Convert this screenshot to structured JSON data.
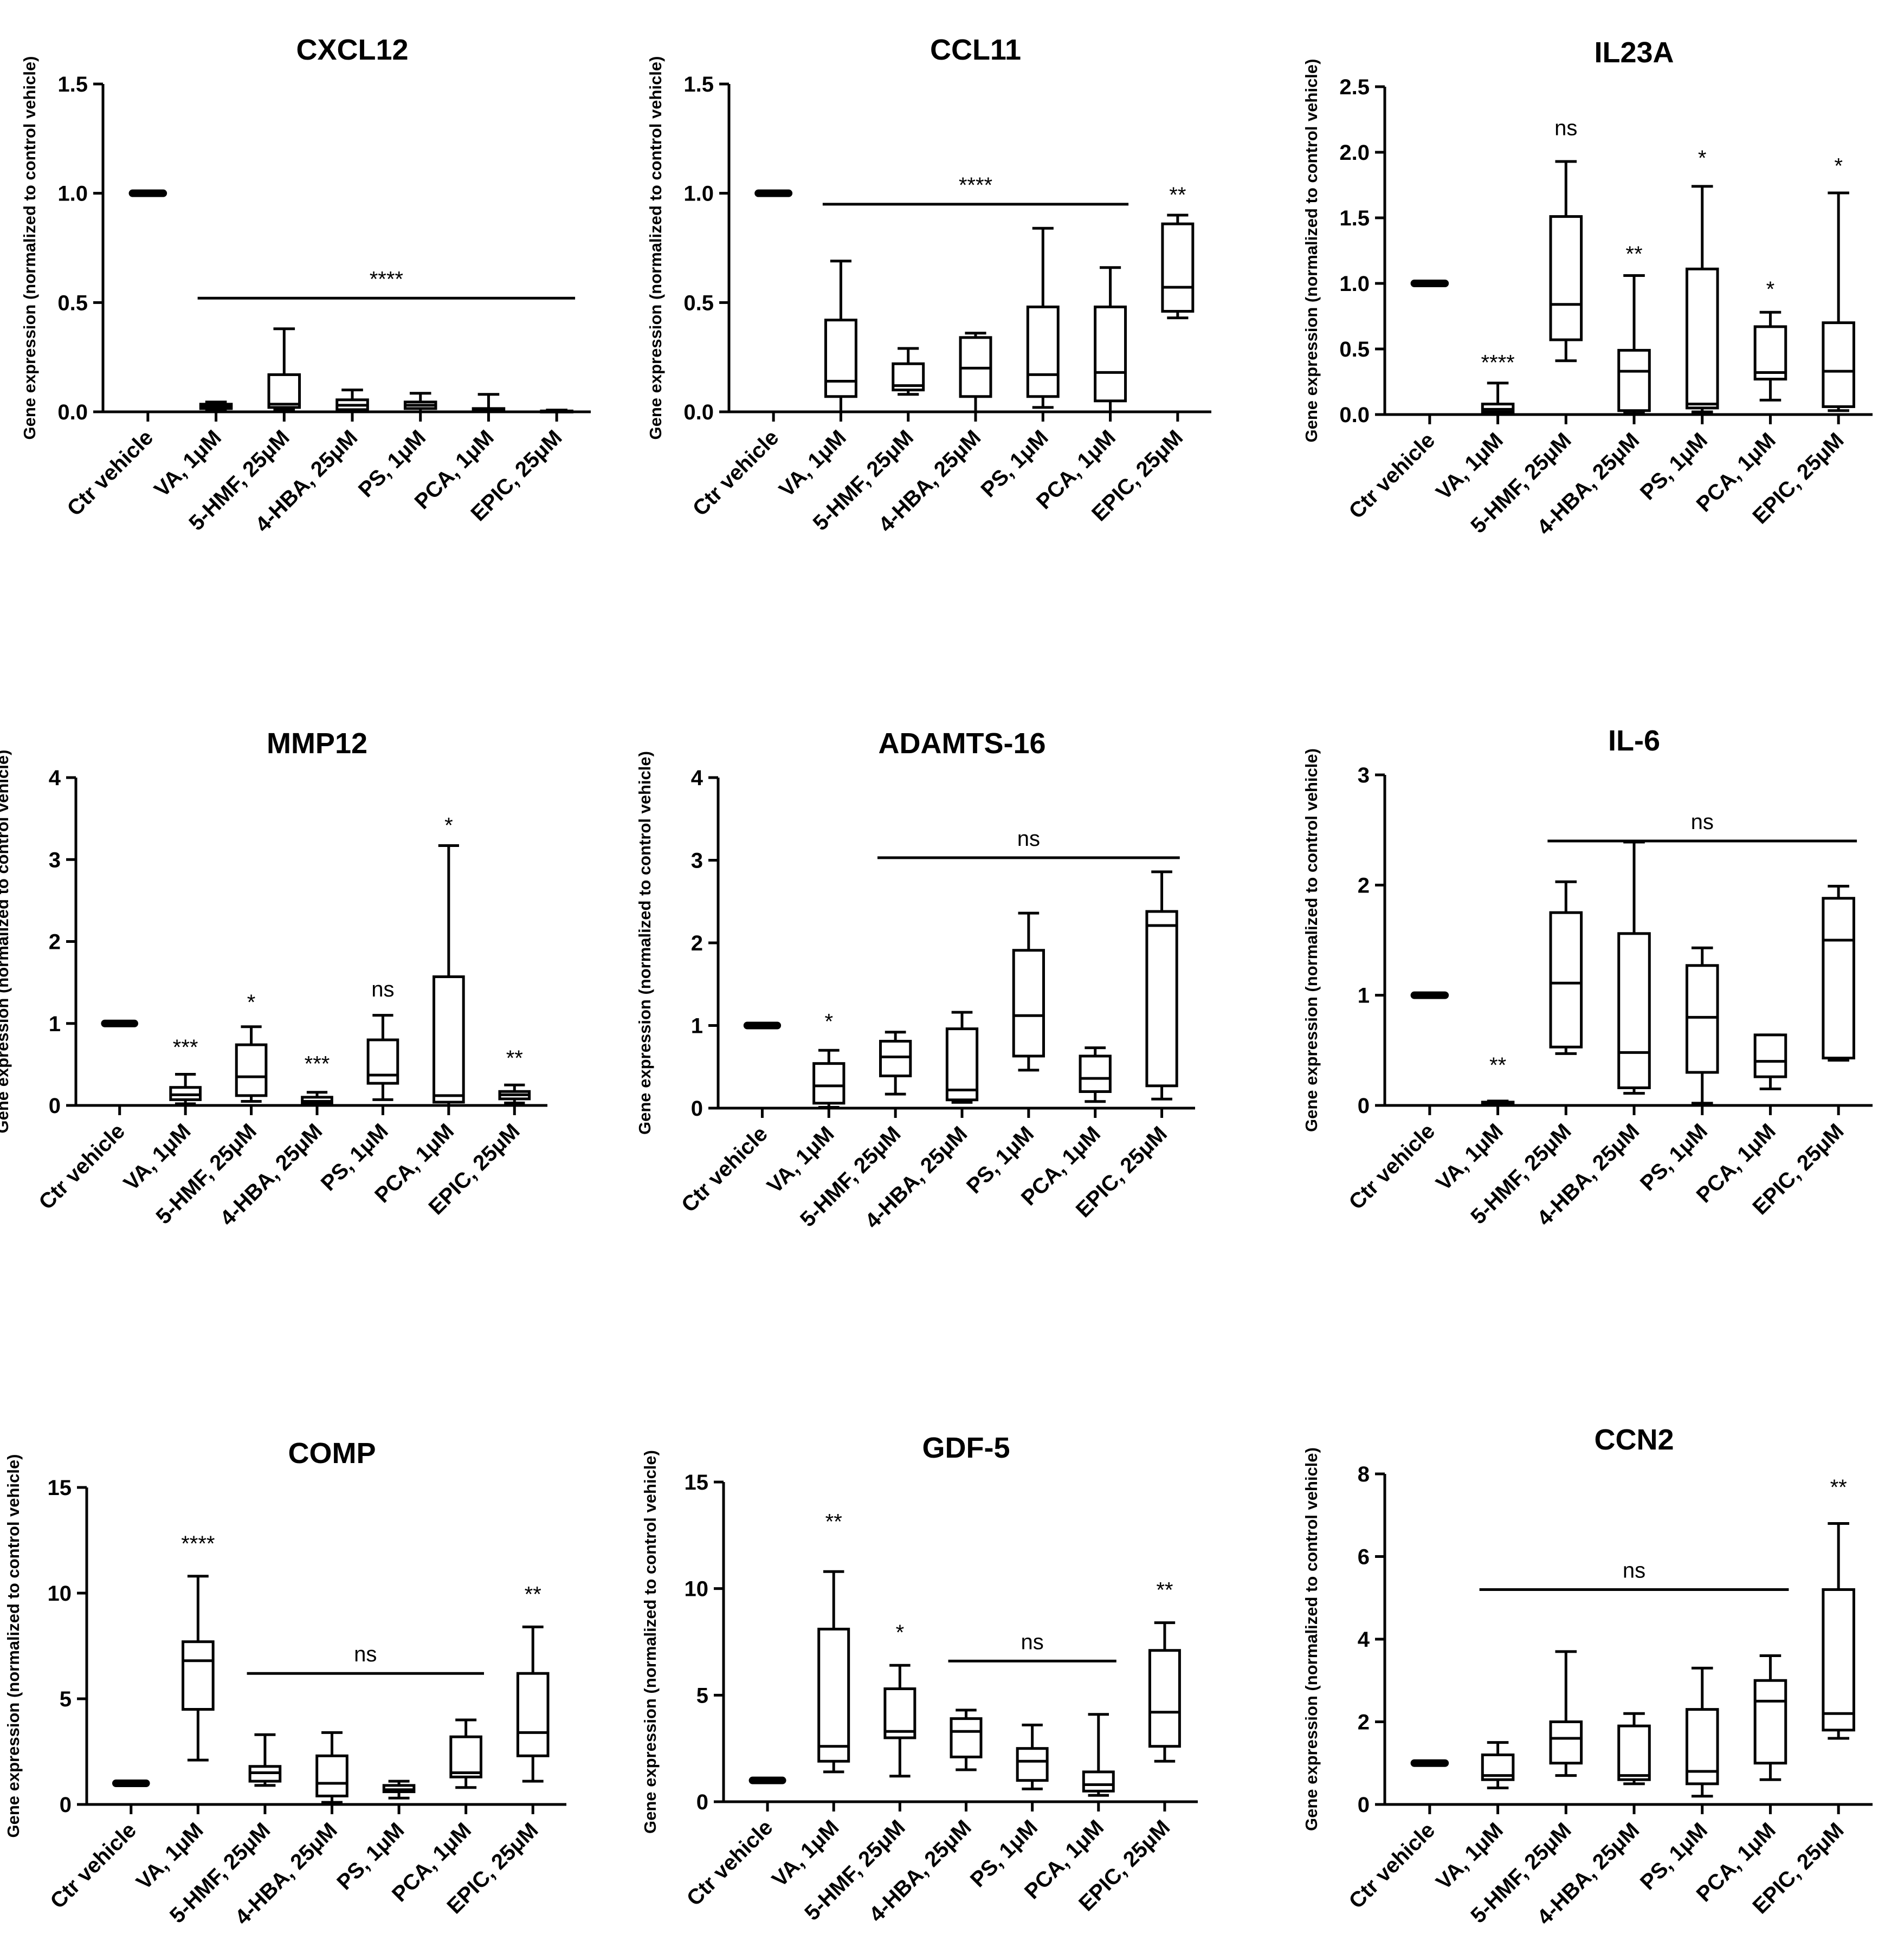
{
  "figure": {
    "panel_count": 9
  },
  "chart_data": [
    {
      "type": "box",
      "title": "CXCL12",
      "ylabel": "Gene expression (normalized to control vehicle)",
      "ylim": [
        0,
        1.5
      ],
      "yticks": [
        0,
        0.5,
        1.0,
        1.5
      ],
      "ytick_labels": [
        "0.0",
        "0.5",
        "1.0",
        "1.5"
      ],
      "categories": [
        "Ctr vehicle",
        "VA, 1μM",
        "5-HMF, 25μM",
        "4-HBA, 25μM",
        "PS, 1μM",
        "PCA, 1μM",
        "EPIC, 25μM"
      ],
      "boxes": [
        {
          "min": 1.0,
          "q1": 1.0,
          "median": 1.0,
          "q3": 1.0,
          "max": 1.0
        },
        {
          "min": 0.01,
          "q1": 0.015,
          "median": 0.025,
          "q3": 0.035,
          "max": 0.045
        },
        {
          "min": 0.01,
          "q1": 0.02,
          "median": 0.035,
          "q3": 0.17,
          "max": 0.38
        },
        {
          "min": 0.0,
          "q1": 0.01,
          "median": 0.03,
          "q3": 0.055,
          "max": 0.1
        },
        {
          "min": 0.0,
          "q1": 0.015,
          "median": 0.03,
          "q3": 0.045,
          "max": 0.085
        },
        {
          "min": 0.0,
          "q1": 0.002,
          "median": 0.006,
          "q3": 0.015,
          "max": 0.08
        },
        {
          "min": 0.0,
          "q1": 0.001,
          "median": 0.002,
          "q3": 0.004,
          "max": 0.008
        }
      ],
      "brackets": [
        {
          "from": 1,
          "to": 6,
          "y": 0.52,
          "label": "****"
        }
      ],
      "annotations": []
    },
    {
      "type": "box",
      "title": "CCL11",
      "ylabel": "Gene expression (normalized to control vehicle)",
      "ylim": [
        0,
        1.5
      ],
      "yticks": [
        0,
        0.5,
        1.0,
        1.5
      ],
      "ytick_labels": [
        "0.0",
        "0.5",
        "1.0",
        "1.5"
      ],
      "categories": [
        "Ctr vehicle",
        "VA, 1μM",
        "5-HMF, 25μM",
        "4-HBA, 25μM",
        "PS, 1μM",
        "PCA, 1μM",
        "EPIC, 25μM"
      ],
      "boxes": [
        {
          "min": 1.0,
          "q1": 1.0,
          "median": 1.0,
          "q3": 1.0,
          "max": 1.0
        },
        {
          "min": 0.0,
          "q1": 0.07,
          "median": 0.14,
          "q3": 0.42,
          "max": 0.69
        },
        {
          "min": 0.08,
          "q1": 0.1,
          "median": 0.12,
          "q3": 0.22,
          "max": 0.29
        },
        {
          "min": 0.0,
          "q1": 0.07,
          "median": 0.2,
          "q3": 0.34,
          "max": 0.36
        },
        {
          "min": 0.02,
          "q1": 0.07,
          "median": 0.17,
          "q3": 0.48,
          "max": 0.84
        },
        {
          "min": 0.0,
          "q1": 0.05,
          "median": 0.18,
          "q3": 0.48,
          "max": 0.66
        },
        {
          "min": 0.43,
          "q1": 0.46,
          "median": 0.57,
          "q3": 0.86,
          "max": 0.9
        }
      ],
      "brackets": [
        {
          "from": 1,
          "to": 5,
          "y": 0.95,
          "label": "****"
        }
      ],
      "annotations": [
        {
          "index": 6,
          "y": 0.96,
          "label": "**"
        }
      ]
    },
    {
      "type": "box",
      "title": "IL23A",
      "ylabel": "Gene expression (normalized to control vehicle)",
      "ylim": [
        0,
        2.5
      ],
      "yticks": [
        0,
        0.5,
        1.0,
        1.5,
        2.0,
        2.5
      ],
      "ytick_labels": [
        "0.0",
        "0.5",
        "1.0",
        "1.5",
        "2.0",
        "2.5"
      ],
      "categories": [
        "Ctr vehicle",
        "VA, 1μM",
        "5-HMF, 25μM",
        "4-HBA, 25μM",
        "PS, 1μM",
        "PCA, 1μM",
        "EPIC, 25μM"
      ],
      "boxes": [
        {
          "min": 1.0,
          "q1": 1.0,
          "median": 1.0,
          "q3": 1.0,
          "max": 1.0
        },
        {
          "min": 0.0,
          "q1": 0.02,
          "median": 0.04,
          "q3": 0.08,
          "max": 0.24
        },
        {
          "min": 0.41,
          "q1": 0.57,
          "median": 0.84,
          "q3": 1.51,
          "max": 1.93
        },
        {
          "min": 0.01,
          "q1": 0.03,
          "median": 0.33,
          "q3": 0.49,
          "max": 1.06
        },
        {
          "min": 0.02,
          "q1": 0.05,
          "median": 0.08,
          "q3": 1.11,
          "max": 1.74
        },
        {
          "min": 0.11,
          "q1": 0.27,
          "median": 0.32,
          "q3": 0.67,
          "max": 0.78
        },
        {
          "min": 0.03,
          "q1": 0.06,
          "median": 0.33,
          "q3": 0.7,
          "max": 1.69
        }
      ],
      "brackets": [],
      "annotations": [
        {
          "index": 1,
          "y": 0.34,
          "label": "****"
        },
        {
          "index": 2,
          "y": 2.13,
          "label": "ns"
        },
        {
          "index": 3,
          "y": 1.17,
          "label": "**"
        },
        {
          "index": 4,
          "y": 1.9,
          "label": "*"
        },
        {
          "index": 5,
          "y": 0.9,
          "label": "*"
        },
        {
          "index": 6,
          "y": 1.84,
          "label": "*"
        }
      ]
    },
    {
      "type": "box",
      "title": "MMP12",
      "ylabel": "Gene expression (normalized to control vehicle)",
      "ylim": [
        0,
        4
      ],
      "yticks": [
        0,
        1,
        2,
        3,
        4
      ],
      "ytick_labels": [
        "0",
        "1",
        "2",
        "3",
        "4"
      ],
      "categories": [
        "Ctr vehicle",
        "VA, 1μM",
        "5-HMF, 25μM",
        "4-HBA, 25μM",
        "PS, 1μM",
        "PCA, 1μM",
        "EPIC, 25μM"
      ],
      "boxes": [
        {
          "min": 1.0,
          "q1": 1.0,
          "median": 1.0,
          "q3": 1.0,
          "max": 1.0
        },
        {
          "min": 0.02,
          "q1": 0.07,
          "median": 0.13,
          "q3": 0.22,
          "max": 0.38
        },
        {
          "min": 0.05,
          "q1": 0.12,
          "median": 0.35,
          "q3": 0.74,
          "max": 0.96
        },
        {
          "min": 0.0,
          "q1": 0.02,
          "median": 0.05,
          "q3": 0.1,
          "max": 0.16
        },
        {
          "min": 0.07,
          "q1": 0.27,
          "median": 0.37,
          "q3": 0.8,
          "max": 1.1
        },
        {
          "min": 0.0,
          "q1": 0.04,
          "median": 0.12,
          "q3": 1.57,
          "max": 3.17
        },
        {
          "min": 0.03,
          "q1": 0.08,
          "median": 0.13,
          "q3": 0.17,
          "max": 0.25
        }
      ],
      "brackets": [],
      "annotations": [
        {
          "index": 1,
          "y": 0.62,
          "label": "***"
        },
        {
          "index": 2,
          "y": 1.17,
          "label": "*"
        },
        {
          "index": 3,
          "y": 0.42,
          "label": "***"
        },
        {
          "index": 4,
          "y": 1.33,
          "label": "ns"
        },
        {
          "index": 5,
          "y": 3.33,
          "label": "*"
        },
        {
          "index": 6,
          "y": 0.49,
          "label": "**"
        }
      ]
    },
    {
      "type": "box",
      "title": "ADAMTS-16",
      "ylabel": "Gene expression (normalized to control vehicle)",
      "ylim": [
        0,
        4
      ],
      "yticks": [
        0,
        1,
        2,
        3,
        4
      ],
      "ytick_labels": [
        "0",
        "1",
        "2",
        "3",
        "4"
      ],
      "categories": [
        "Ctr vehicle",
        "VA, 1μM",
        "5-HMF, 25μM",
        "4-HBA, 25μM",
        "PS, 1μM",
        "PCA, 1μM",
        "EPIC, 25μM"
      ],
      "boxes": [
        {
          "min": 1.0,
          "q1": 1.0,
          "median": 1.0,
          "q3": 1.0,
          "max": 1.0
        },
        {
          "min": 0.01,
          "q1": 0.06,
          "median": 0.27,
          "q3": 0.54,
          "max": 0.7
        },
        {
          "min": 0.17,
          "q1": 0.39,
          "median": 0.62,
          "q3": 0.81,
          "max": 0.92
        },
        {
          "min": 0.07,
          "q1": 0.1,
          "median": 0.22,
          "q3": 0.96,
          "max": 1.16
        },
        {
          "min": 0.46,
          "q1": 0.63,
          "median": 1.12,
          "q3": 1.91,
          "max": 2.36
        },
        {
          "min": 0.08,
          "q1": 0.2,
          "median": 0.36,
          "q3": 0.63,
          "max": 0.73
        },
        {
          "min": 0.11,
          "q1": 0.27,
          "median": 2.21,
          "q3": 2.38,
          "max": 2.86
        }
      ],
      "brackets": [
        {
          "from": 2,
          "to": 6,
          "y": 3.03,
          "label": "ns"
        }
      ],
      "annotations": [
        {
          "index": 1,
          "y": 0.96,
          "label": "*"
        }
      ]
    },
    {
      "type": "box",
      "title": "IL-6",
      "ylabel": "Gene expression (normalized to control vehicle)",
      "ylim": [
        0,
        3
      ],
      "yticks": [
        0,
        1,
        2,
        3
      ],
      "ytick_labels": [
        "0",
        "1",
        "2",
        "3"
      ],
      "categories": [
        "Ctr vehicle",
        "VA, 1μM",
        "5-HMF, 25μM",
        "4-HBA, 25μM",
        "PS, 1μM",
        "PCA, 1μM",
        "EPIC, 25μM"
      ],
      "boxes": [
        {
          "min": 1.0,
          "q1": 1.0,
          "median": 1.0,
          "q3": 1.0,
          "max": 1.0
        },
        {
          "min": 0.0,
          "q1": 0.01,
          "median": 0.02,
          "q3": 0.03,
          "max": 0.04
        },
        {
          "min": 0.47,
          "q1": 0.53,
          "median": 1.11,
          "q3": 1.75,
          "max": 2.03
        },
        {
          "min": 0.11,
          "q1": 0.16,
          "median": 0.48,
          "q3": 1.56,
          "max": 2.39
        },
        {
          "min": 0.02,
          "q1": 0.3,
          "median": 0.8,
          "q3": 1.27,
          "max": 1.43
        },
        {
          "min": 0.15,
          "q1": 0.26,
          "median": 0.4,
          "q3": 0.64,
          "max": 0.64
        },
        {
          "min": 0.41,
          "q1": 0.43,
          "median": 1.5,
          "q3": 1.88,
          "max": 1.99
        }
      ],
      "brackets": [
        {
          "from": 2,
          "to": 6,
          "y": 2.4,
          "label": "ns"
        }
      ],
      "annotations": [
        {
          "index": 1,
          "y": 0.3,
          "label": "**"
        }
      ]
    },
    {
      "type": "box",
      "title": "COMP",
      "ylabel": "Gene expression (normalized to control vehicle)",
      "ylim": [
        0,
        15
      ],
      "yticks": [
        0,
        5,
        10,
        15
      ],
      "ytick_labels": [
        "0",
        "5",
        "10",
        "15"
      ],
      "categories": [
        "Ctr vehicle",
        "VA, 1μM",
        "5-HMF, 25μM",
        "4-HBA, 25μM",
        "PS, 1μM",
        "PCA, 1μM",
        "EPIC, 25μM"
      ],
      "boxes": [
        {
          "min": 1.0,
          "q1": 1.0,
          "median": 1.0,
          "q3": 1.0,
          "max": 1.0
        },
        {
          "min": 2.1,
          "q1": 4.5,
          "median": 6.8,
          "q3": 7.7,
          "max": 10.8
        },
        {
          "min": 0.9,
          "q1": 1.1,
          "median": 1.5,
          "q3": 1.8,
          "max": 3.3
        },
        {
          "min": 0.1,
          "q1": 0.4,
          "median": 1.0,
          "q3": 2.3,
          "max": 3.4
        },
        {
          "min": 0.3,
          "q1": 0.6,
          "median": 0.7,
          "q3": 0.9,
          "max": 1.1
        },
        {
          "min": 0.8,
          "q1": 1.3,
          "median": 1.5,
          "q3": 3.2,
          "max": 4.0
        },
        {
          "min": 1.1,
          "q1": 2.3,
          "median": 3.4,
          "q3": 6.2,
          "max": 8.4
        }
      ],
      "brackets": [
        {
          "from": 2,
          "to": 5,
          "y": 6.2,
          "label": "ns"
        }
      ],
      "annotations": [
        {
          "index": 1,
          "y": 12.0,
          "label": "****"
        },
        {
          "index": 6,
          "y": 9.6,
          "label": "**"
        }
      ]
    },
    {
      "type": "box",
      "title": "GDF-5",
      "ylabel": "Gene expression (normalized to control vehicle)",
      "ylim": [
        0,
        15
      ],
      "yticks": [
        0,
        5,
        10,
        15
      ],
      "ytick_labels": [
        "0",
        "5",
        "10",
        "15"
      ],
      "categories": [
        "Ctr vehicle",
        "VA, 1μM",
        "5-HMF, 25μM",
        "4-HBA, 25μM",
        "PS, 1μM",
        "PCA, 1μM",
        "EPIC, 25μM"
      ],
      "boxes": [
        {
          "min": 1.0,
          "q1": 1.0,
          "median": 1.0,
          "q3": 1.0,
          "max": 1.0
        },
        {
          "min": 1.4,
          "q1": 1.9,
          "median": 2.6,
          "q3": 8.1,
          "max": 10.8
        },
        {
          "min": 1.2,
          "q1": 3.0,
          "median": 3.3,
          "q3": 5.3,
          "max": 6.4
        },
        {
          "min": 1.5,
          "q1": 2.1,
          "median": 3.3,
          "q3": 3.9,
          "max": 4.3
        },
        {
          "min": 0.6,
          "q1": 1.0,
          "median": 1.9,
          "q3": 2.5,
          "max": 3.6
        },
        {
          "min": 0.3,
          "q1": 0.5,
          "median": 0.8,
          "q3": 1.4,
          "max": 4.1
        },
        {
          "min": 1.9,
          "q1": 2.6,
          "median": 4.2,
          "q3": 7.1,
          "max": 8.4
        }
      ],
      "brackets": [
        {
          "from": 3,
          "to": 5,
          "y": 6.6,
          "label": "ns"
        }
      ],
      "annotations": [
        {
          "index": 1,
          "y": 12.8,
          "label": "**"
        },
        {
          "index": 2,
          "y": 7.6,
          "label": "*"
        },
        {
          "index": 6,
          "y": 9.6,
          "label": "**"
        }
      ]
    },
    {
      "type": "box",
      "title": "CCN2",
      "ylabel": "Gene expression (normalized to control vehicle)",
      "ylim": [
        0,
        8
      ],
      "yticks": [
        0,
        2,
        4,
        6,
        8
      ],
      "ytick_labels": [
        "0",
        "2",
        "4",
        "6",
        "8"
      ],
      "categories": [
        "Ctr vehicle",
        "VA, 1μM",
        "5-HMF, 25μM",
        "4-HBA, 25μM",
        "PS, 1μM",
        "PCA, 1μM",
        "EPIC, 25μM"
      ],
      "boxes": [
        {
          "min": 1.0,
          "q1": 1.0,
          "median": 1.0,
          "q3": 1.0,
          "max": 1.0
        },
        {
          "min": 0.4,
          "q1": 0.6,
          "median": 0.7,
          "q3": 1.2,
          "max": 1.5
        },
        {
          "min": 0.7,
          "q1": 1.0,
          "median": 1.6,
          "q3": 2.0,
          "max": 3.7
        },
        {
          "min": 0.5,
          "q1": 0.6,
          "median": 0.7,
          "q3": 1.9,
          "max": 2.2
        },
        {
          "min": 0.2,
          "q1": 0.5,
          "median": 0.8,
          "q3": 2.3,
          "max": 3.3
        },
        {
          "min": 0.6,
          "q1": 1.0,
          "median": 2.5,
          "q3": 3.0,
          "max": 3.6
        },
        {
          "min": 1.6,
          "q1": 1.8,
          "median": 2.2,
          "q3": 5.2,
          "max": 6.8
        }
      ],
      "brackets": [
        {
          "from": 1,
          "to": 5,
          "y": 5.2,
          "label": "ns"
        }
      ],
      "annotations": [
        {
          "index": 6,
          "y": 7.5,
          "label": "**"
        }
      ]
    }
  ]
}
